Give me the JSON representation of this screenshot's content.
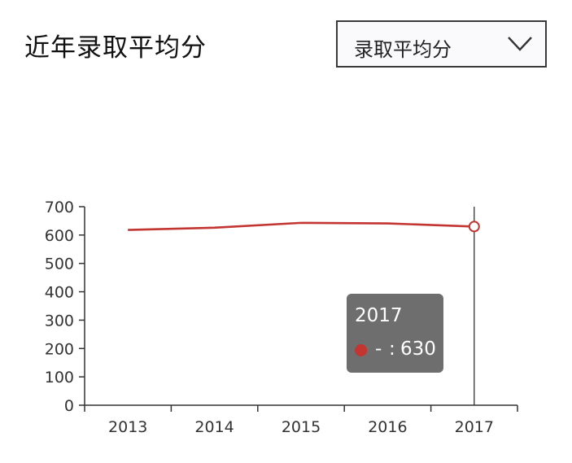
{
  "header": {
    "title": "近年录取平均分"
  },
  "selector": {
    "value": "录取平均分",
    "icon": "chevron-down-icon"
  },
  "chart_data": {
    "type": "line",
    "categories": [
      "2013",
      "2014",
      "2015",
      "2016",
      "2017"
    ],
    "series": [
      {
        "values": [
          618,
          626,
          643,
          641,
          630
        ]
      }
    ],
    "ylim": [
      0,
      700
    ],
    "yticks": [
      "0",
      "100",
      "200",
      "300",
      "400",
      "500",
      "600",
      "700"
    ],
    "grid": false,
    "line_color": "#c23531",
    "highlighted_category": "2017"
  },
  "tooltip": {
    "title": "2017",
    "series_name": "-",
    "separator": ":",
    "value": "630"
  }
}
